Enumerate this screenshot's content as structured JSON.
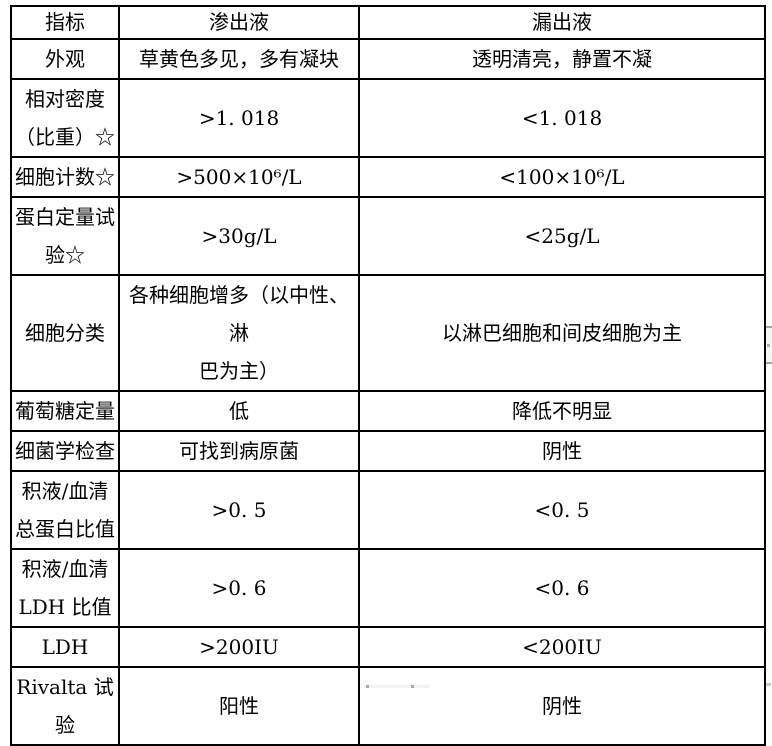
{
  "colors": {
    "table_border": "#000000",
    "text": "#000000",
    "background": "#ffffff",
    "scrollbar_track": "#f6f6f6",
    "scrollbar_cap": "#a3a3a3"
  },
  "table": {
    "columns": [
      "指标",
      "渗出液",
      "漏出液"
    ],
    "rows": [
      {
        "label": "外观",
        "exudate": "草黄色多见，多有凝块",
        "transudate": "透明清亮，静置不凝"
      },
      {
        "label": "相对密度\n（比重）☆",
        "exudate": ">1. 018",
        "transudate": "<1. 018"
      },
      {
        "label": "细胞计数☆",
        "exudate": ">500×10⁶/L",
        "transudate": "<100×10⁶/L"
      },
      {
        "label": "蛋白定量试\n验☆",
        "exudate": ">30g/L",
        "transudate": "<25g/L"
      },
      {
        "label": "细胞分类",
        "exudate": "各种细胞增多（以中性、淋\n巴为主）",
        "transudate": "以淋巴细胞和间皮细胞为主"
      },
      {
        "label": "葡萄糖定量",
        "exudate": "低",
        "transudate": "降低不明显"
      },
      {
        "label": "细菌学检查",
        "exudate": "可找到病原菌",
        "transudate": "阴性"
      },
      {
        "label": "积液/血清\n总蛋白比值",
        "exudate": ">0. 5",
        "transudate": "<0. 5"
      },
      {
        "label": "积液/血清\nLDH 比值",
        "exudate": ">0. 6",
        "transudate": "<0. 6"
      },
      {
        "label": "LDH",
        "exudate": ">200IU",
        "transudate": "<200IU"
      },
      {
        "label": "Rivalta 试\n验",
        "exudate": "阳性",
        "transudate": "阴性"
      }
    ]
  }
}
